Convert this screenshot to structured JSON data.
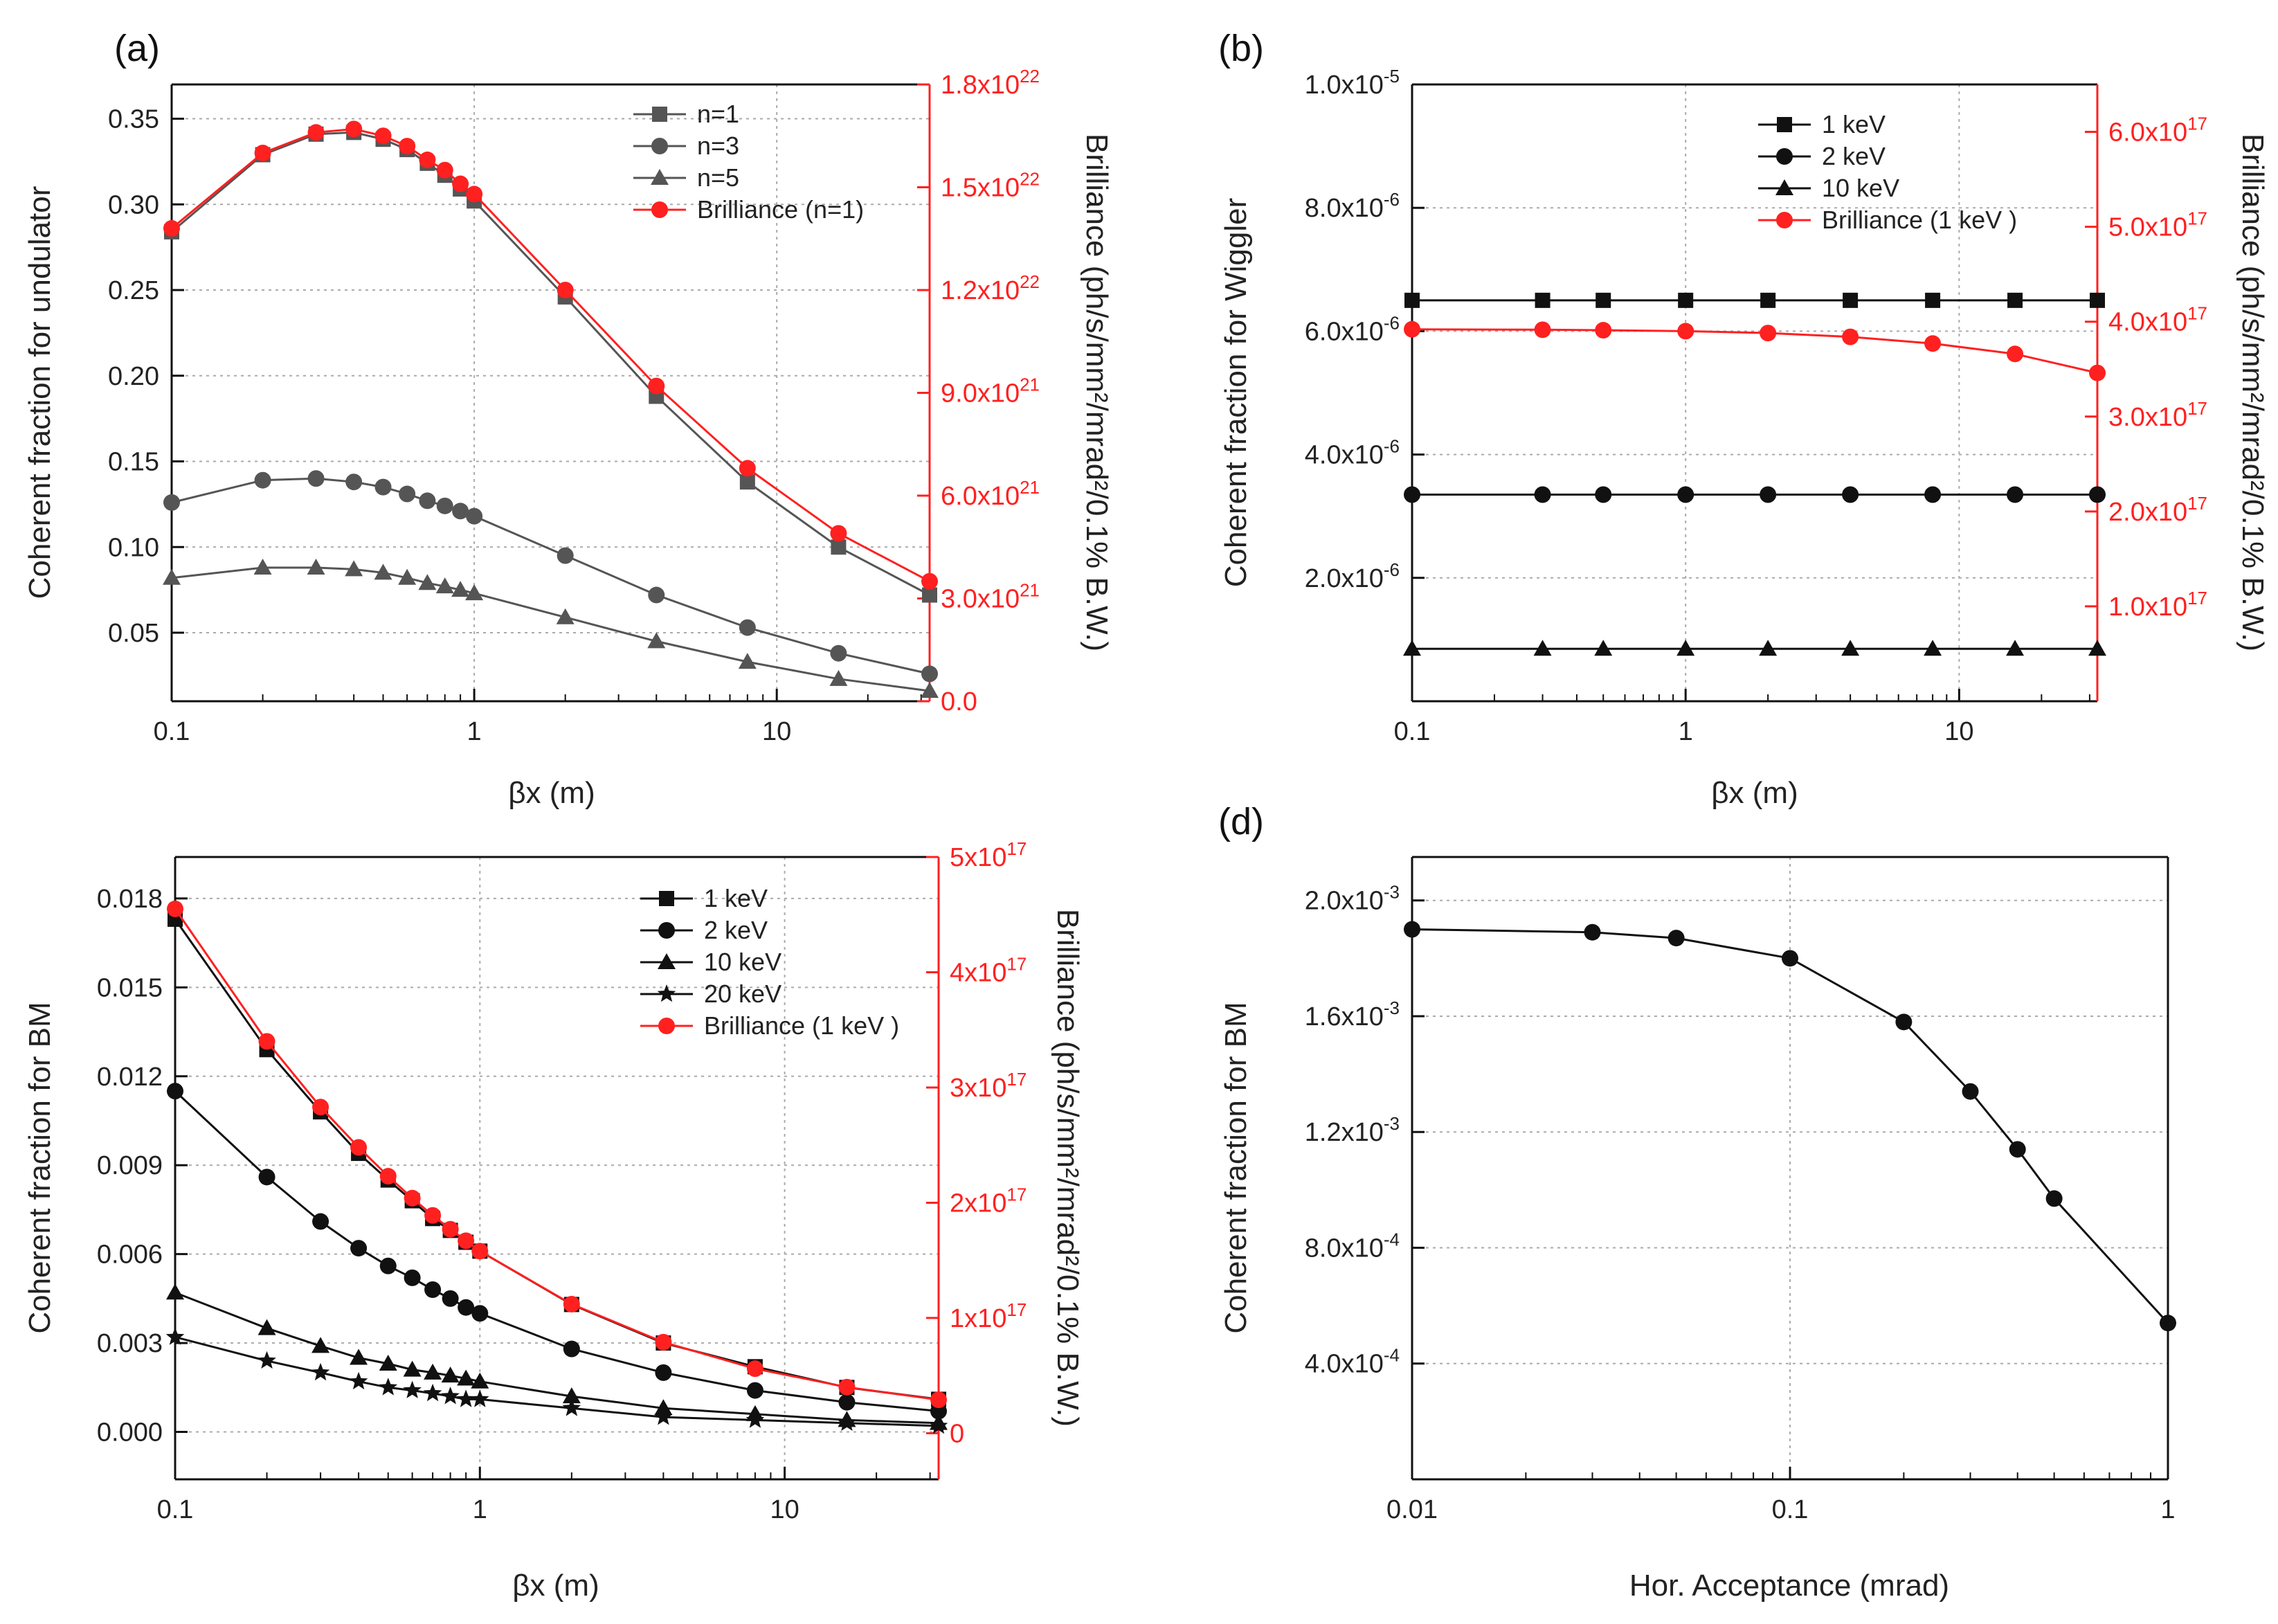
{
  "chart_data": [
    {
      "id": "a",
      "type": "line",
      "panel_label": "(a)",
      "xscale": "log",
      "xlim": [
        0.1,
        32
      ],
      "xticks": [
        {
          "v": 0.1,
          "t": "0.1"
        },
        {
          "v": 1,
          "t": "1"
        },
        {
          "v": 10,
          "t": "10"
        }
      ],
      "xlabel": "βx (m)",
      "ylabel": "Coherent fraction for undulator",
      "ylim": [
        0.01,
        0.37
      ],
      "yticks": [
        {
          "v": 0.05,
          "t": "0.05"
        },
        {
          "v": 0.1,
          "t": "0.10"
        },
        {
          "v": 0.15,
          "t": "0.15"
        },
        {
          "v": 0.2,
          "t": "0.20"
        },
        {
          "v": 0.25,
          "t": "0.25"
        },
        {
          "v": 0.3,
          "t": "0.30"
        },
        {
          "v": 0.35,
          "t": "0.35"
        }
      ],
      "y2label": "Brilliance (ph/s/mm²/mrad²/0.1% B.W.)",
      "y2lim": [
        0,
        1.8e+22
      ],
      "y2ticks": [
        {
          "v": 0,
          "m": "0.0",
          "e": ""
        },
        {
          "v": 3e+21,
          "m": "3.0x10",
          "e": "21"
        },
        {
          "v": 6e+21,
          "m": "6.0x10",
          "e": "21"
        },
        {
          "v": 9e+21,
          "m": "9.0x10",
          "e": "21"
        },
        {
          "v": 1.2e+22,
          "m": "1.2x10",
          "e": "22"
        },
        {
          "v": 1.5e+22,
          "m": "1.5x10",
          "e": "22"
        },
        {
          "v": 1.8e+22,
          "m": "1.8x10",
          "e": "22"
        }
      ],
      "legend_position": "top-right",
      "x": [
        0.1,
        0.2,
        0.3,
        0.4,
        0.5,
        0.6,
        0.7,
        0.8,
        0.9,
        1,
        2,
        4,
        8,
        16,
        32
      ],
      "series": [
        {
          "name": "n=1",
          "marker": "square",
          "color": "#555555",
          "axis": "y1",
          "values": [
            0.284,
            0.329,
            0.341,
            0.342,
            0.338,
            0.332,
            0.324,
            0.317,
            0.309,
            0.302,
            0.246,
            0.188,
            0.138,
            0.1,
            0.072
          ]
        },
        {
          "name": "n=3",
          "marker": "circle",
          "color": "#555555",
          "axis": "y1",
          "values": [
            0.126,
            0.139,
            0.14,
            0.138,
            0.135,
            0.131,
            0.127,
            0.124,
            0.121,
            0.118,
            0.095,
            0.072,
            0.053,
            0.038,
            0.026
          ]
        },
        {
          "name": "n=5",
          "marker": "triangle",
          "color": "#555555",
          "axis": "y1",
          "values": [
            0.082,
            0.088,
            0.088,
            0.087,
            0.085,
            0.082,
            0.079,
            0.077,
            0.075,
            0.073,
            0.059,
            0.045,
            0.033,
            0.023,
            0.016
          ]
        },
        {
          "name": "Brilliance (n=1)",
          "marker": "circle",
          "color": "#ff2020",
          "axis": "y2",
          "values": [
            1.38e+22,
            1.6e+22,
            1.66e+22,
            1.67e+22,
            1.65e+22,
            1.62e+22,
            1.58e+22,
            1.55e+22,
            1.51e+22,
            1.48e+22,
            1.2e+22,
            9.2e+21,
            6.8e+21,
            4.9e+21,
            3.5e+21
          ]
        }
      ]
    },
    {
      "id": "b",
      "type": "line",
      "panel_label": "(b)",
      "xscale": "log",
      "xlim": [
        0.1,
        32
      ],
      "xticks": [
        {
          "v": 0.1,
          "t": "0.1"
        },
        {
          "v": 1,
          "t": "1"
        },
        {
          "v": 10,
          "t": "10"
        }
      ],
      "xlabel": "βx (m)",
      "ylabel": "Coherent fraction for Wiggler",
      "ylim": [
        0,
        1e-05
      ],
      "yticks": [
        {
          "v": 2e-06,
          "m": "2.0x10",
          "e": "-6"
        },
        {
          "v": 4e-06,
          "m": "4.0x10",
          "e": "-6"
        },
        {
          "v": 6e-06,
          "m": "6.0x10",
          "e": "-6"
        },
        {
          "v": 8e-06,
          "m": "8.0x10",
          "e": "-6"
        },
        {
          "v": 1e-05,
          "m": "1.0x10",
          "e": "-5"
        }
      ],
      "y2label": "Brilliance (ph/s/mm²/mrad²/0.1% B.W.)",
      "y2lim": [
        0,
        6.5e+17
      ],
      "y2ticks": [
        {
          "v": 1e+17,
          "m": "1.0x10",
          "e": "17"
        },
        {
          "v": 2e+17,
          "m": "2.0x10",
          "e": "17"
        },
        {
          "v": 3e+17,
          "m": "3.0x10",
          "e": "17"
        },
        {
          "v": 4e+17,
          "m": "4.0x10",
          "e": "17"
        },
        {
          "v": 5e+17,
          "m": "5.0x10",
          "e": "17"
        },
        {
          "v": 6e+17,
          "m": "6.0x10",
          "e": "17"
        }
      ],
      "legend_position": "top-center",
      "x": [
        0.1,
        0.3,
        0.5,
        1,
        2,
        4,
        8,
        16,
        32
      ],
      "series": [
        {
          "name": "1 keV",
          "marker": "square",
          "color": "#111111",
          "axis": "y1",
          "values": [
            6.5e-06,
            6.5e-06,
            6.5e-06,
            6.5e-06,
            6.5e-06,
            6.5e-06,
            6.5e-06,
            6.5e-06,
            6.5e-06
          ]
        },
        {
          "name": "2 keV",
          "marker": "circle",
          "color": "#111111",
          "axis": "y1",
          "values": [
            3.35e-06,
            3.35e-06,
            3.35e-06,
            3.35e-06,
            3.35e-06,
            3.35e-06,
            3.35e-06,
            3.35e-06,
            3.35e-06
          ]
        },
        {
          "name": "10 keV",
          "marker": "triangle",
          "color": "#111111",
          "axis": "y1",
          "values": [
            8.5e-07,
            8.5e-07,
            8.5e-07,
            8.5e-07,
            8.5e-07,
            8.5e-07,
            8.5e-07,
            8.5e-07,
            8.5e-07
          ]
        },
        {
          "name": "Brilliance (1 keV )",
          "marker": "circle",
          "color": "#ff2020",
          "axis": "y2",
          "values": [
            3.92e+17,
            3.915e+17,
            3.91e+17,
            3.9e+17,
            3.88e+17,
            3.84e+17,
            3.77e+17,
            3.66e+17,
            3.46e+17
          ]
        }
      ]
    },
    {
      "id": "c",
      "type": "line",
      "panel_label": "",
      "xscale": "log",
      "xlim": [
        0.1,
        32
      ],
      "xticks": [
        {
          "v": 0.1,
          "t": "0.1"
        },
        {
          "v": 1,
          "t": "1"
        },
        {
          "v": 10,
          "t": "10"
        }
      ],
      "xlabel": "βx (m)",
      "ylabel": "Coherent fraction for BM",
      "ylim": [
        -0.0016,
        0.0194
      ],
      "yticks": [
        {
          "v": 0,
          "t": "0.000"
        },
        {
          "v": 0.003,
          "t": "0.003"
        },
        {
          "v": 0.006,
          "t": "0.006"
        },
        {
          "v": 0.009,
          "t": "0.009"
        },
        {
          "v": 0.012,
          "t": "0.012"
        },
        {
          "v": 0.015,
          "t": "0.015"
        },
        {
          "v": 0.018,
          "t": "0.018"
        }
      ],
      "y2label": "Brilliance (ph/s/mm²/mrad²/0.1% B.W.)",
      "y2lim": [
        -4e+16,
        5e+17
      ],
      "y2ticks": [
        {
          "v": 0,
          "m": "0",
          "e": ""
        },
        {
          "v": 1e+17,
          "m": "1x10",
          "e": "17"
        },
        {
          "v": 2e+17,
          "m": "2x10",
          "e": "17"
        },
        {
          "v": 3e+17,
          "m": "3x10",
          "e": "17"
        },
        {
          "v": 4e+17,
          "m": "4x10",
          "e": "17"
        },
        {
          "v": 5e+17,
          "m": "5x10",
          "e": "17"
        }
      ],
      "legend_position": "top-right",
      "x": [
        0.1,
        0.2,
        0.3,
        0.4,
        0.5,
        0.6,
        0.7,
        0.8,
        0.9,
        1,
        2,
        4,
        8,
        16,
        32
      ],
      "series": [
        {
          "name": "1 keV",
          "marker": "square",
          "color": "#111111",
          "axis": "y1",
          "values": [
            0.0173,
            0.0129,
            0.0108,
            0.0094,
            0.0085,
            0.0078,
            0.0072,
            0.0068,
            0.0064,
            0.0061,
            0.0043,
            0.003,
            0.0022,
            0.0015,
            0.0011
          ]
        },
        {
          "name": "2 keV",
          "marker": "circle",
          "color": "#111111",
          "axis": "y1",
          "values": [
            0.0115,
            0.0086,
            0.0071,
            0.0062,
            0.0056,
            0.0052,
            0.0048,
            0.0045,
            0.0042,
            0.004,
            0.0028,
            0.002,
            0.0014,
            0.001,
            0.0007
          ]
        },
        {
          "name": "10 keV",
          "marker": "triangle",
          "color": "#111111",
          "axis": "y1",
          "values": [
            0.0047,
            0.0035,
            0.0029,
            0.0025,
            0.0023,
            0.0021,
            0.002,
            0.0019,
            0.0018,
            0.0017,
            0.0012,
            0.0008,
            0.0006,
            0.0004,
            0.0003
          ]
        },
        {
          "name": "20 keV",
          "marker": "star",
          "color": "#111111",
          "axis": "y1",
          "values": [
            0.0032,
            0.0024,
            0.002,
            0.0017,
            0.0015,
            0.0014,
            0.0013,
            0.0012,
            0.0011,
            0.0011,
            0.0008,
            0.0005,
            0.0004,
            0.0003,
            0.0002
          ]
        },
        {
          "name": "Brilliance (1 keV )",
          "marker": "circle",
          "color": "#ff2020",
          "axis": "y2",
          "values": [
            4.55e+17,
            3.4e+17,
            2.83e+17,
            2.48e+17,
            2.23e+17,
            2.04e+17,
            1.89e+17,
            1.77e+17,
            1.67e+17,
            1.58e+17,
            1.12e+17,
            7.9e+16,
            5.6e+16,
            4e+16,
            2.9e+16
          ]
        }
      ]
    },
    {
      "id": "d",
      "type": "line",
      "panel_label": "(d)",
      "xscale": "log",
      "xlim": [
        0.01,
        1.0
      ],
      "xticks": [
        {
          "v": 0.01,
          "t": "0.01"
        },
        {
          "v": 0.1,
          "t": "0.1"
        },
        {
          "v": 1,
          "t": "1"
        }
      ],
      "xlabel": "Hor. Acceptance (mrad)",
      "ylabel": "Coherent fraction for BM",
      "ylim": [
        0.0,
        0.00215
      ],
      "yticks": [
        {
          "v": 0.0004,
          "m": "4.0x10",
          "e": "-4"
        },
        {
          "v": 0.0008,
          "m": "8.0x10",
          "e": "-4"
        },
        {
          "v": 0.0012,
          "m": "1.2x10",
          "e": "-3"
        },
        {
          "v": 0.0016,
          "m": "1.6x10",
          "e": "-3"
        },
        {
          "v": 0.002,
          "m": "2.0x10",
          "e": "-3"
        }
      ],
      "legend_position": "none",
      "x": [
        0.01,
        0.03,
        0.05,
        0.1,
        0.2,
        0.3,
        0.4,
        0.5,
        1.0
      ],
      "series": [
        {
          "name": "",
          "marker": "circle",
          "color": "#111111",
          "axis": "y1",
          "values": [
            0.0019,
            0.00189,
            0.00187,
            0.0018,
            0.00158,
            0.00134,
            0.00114,
            0.00097,
            0.00054
          ]
        }
      ]
    }
  ]
}
